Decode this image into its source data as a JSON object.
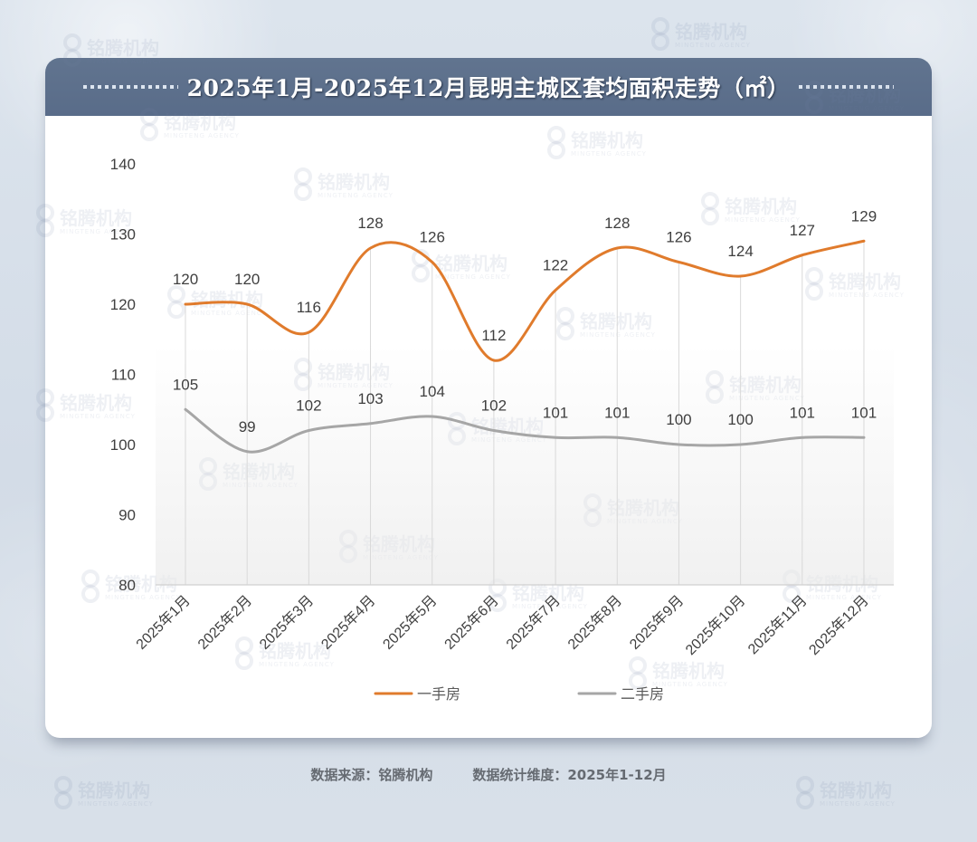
{
  "chart_data": {
    "type": "line",
    "title": "2025年1月-2025年12月昆明主城区套均面积走势（㎡）",
    "xlabel": "",
    "ylabel": "",
    "categories": [
      "2025年1月",
      "2025年2月",
      "2025年3月",
      "2025年4月",
      "2025年5月",
      "2025年6月",
      "2025年7月",
      "2025年8月",
      "2025年9月",
      "2025年10月",
      "2025年11月",
      "2025年12月"
    ],
    "series": [
      {
        "name": "一手房",
        "color": "#e07b2c",
        "values": [
          120,
          120,
          116,
          128,
          126,
          112,
          122,
          128,
          126,
          124,
          127,
          129
        ]
      },
      {
        "name": "二手房",
        "color": "#a6a6a6",
        "values": [
          105,
          99,
          102,
          103,
          104,
          102,
          101,
          101,
          100,
          100,
          101,
          101
        ]
      }
    ],
    "ylim": [
      80,
      140
    ],
    "yticks": [
      80,
      90,
      100,
      110,
      120,
      130,
      140
    ],
    "grid": false,
    "drop_lines": true,
    "smooth": true,
    "legend": "bottom"
  },
  "footer": {
    "source": "数据来源：铭腾机构",
    "period": "数据统计维度：2025年1-12月"
  },
  "watermark": {
    "name": "铭腾机构",
    "sub": "MINGTENG AGENCY"
  }
}
